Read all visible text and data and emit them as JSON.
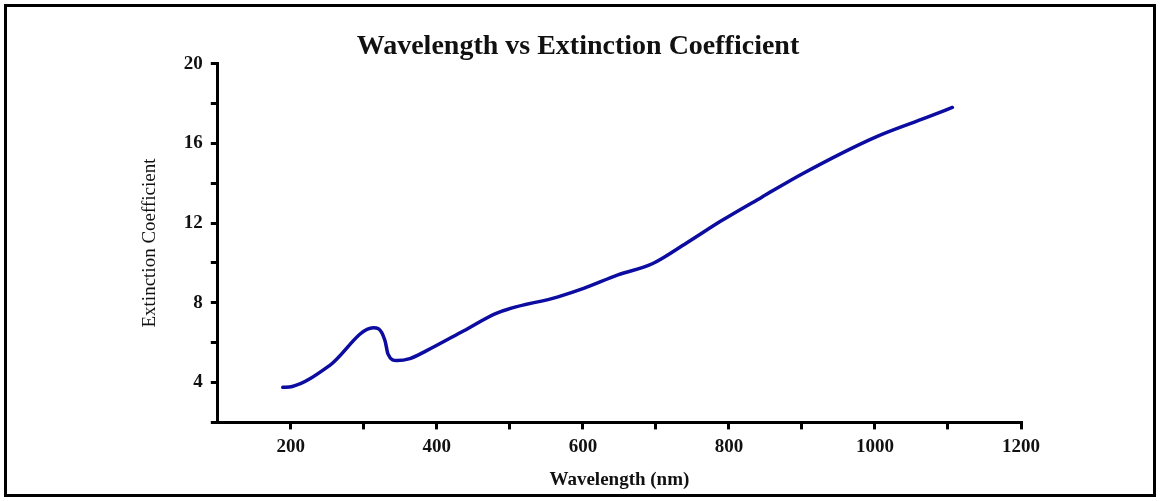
{
  "chart_data": {
    "type": "line",
    "title": "Wavelength vs Extinction Coefficient",
    "xlabel": "Wavelength (nm)",
    "ylabel": "Extinction Coefficient",
    "xlim": [
      100,
      1200
    ],
    "xticks": [
      200,
      {
        "value": 300,
        "label": null
      },
      400,
      {
        "value": 500,
        "label": null
      },
      600,
      {
        "value": 700,
        "label": null
      },
      800,
      {
        "value": 900,
        "label": null
      },
      1000,
      {
        "value": 1100,
        "label": null
      },
      1200
    ],
    "ylim": [
      2,
      20
    ],
    "yticks": [
      {
        "value": 2,
        "label": null
      },
      4,
      {
        "value": 6,
        "label": null
      },
      8,
      {
        "value": 10,
        "label": null
      },
      12,
      {
        "value": 14,
        "label": null
      },
      16,
      {
        "value": 18,
        "label": null
      },
      20
    ],
    "grid": false,
    "legend": false,
    "marker": "none",
    "line_style": "solid",
    "series": [
      {
        "color": "#0c0ca0",
        "x": [
          189,
          202,
          253,
          313,
          320,
          329,
          333,
          345,
          363,
          386,
          437,
          483,
          566,
          601,
          648,
          695,
          742,
          789,
          845,
          902,
          1000,
          1071,
          1106
        ],
        "values": [
          3.76,
          3.8,
          4.85,
          6.75,
          6.7,
          6.1,
          5.44,
          5.1,
          5.2,
          5.6,
          6.6,
          7.5,
          8.3,
          8.72,
          9.4,
          9.96,
          11,
          12.1,
          13.3,
          14.5,
          16.3,
          17.3,
          17.8
        ]
      }
    ]
  }
}
